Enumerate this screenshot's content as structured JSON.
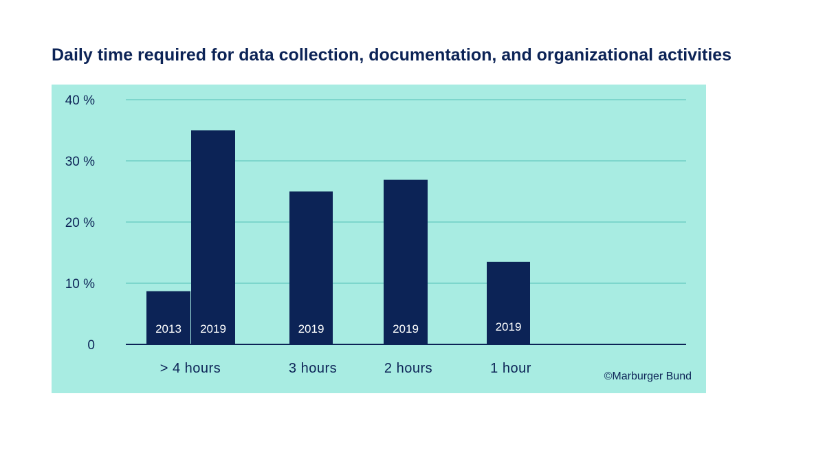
{
  "chart_data": {
    "type": "bar",
    "title": "Daily time required for data collection, documentation, and organizational activities",
    "xlabel": "",
    "ylabel": "",
    "ylim": [
      0,
      40
    ],
    "yticks": [
      {
        "value": 0,
        "label": "0"
      },
      {
        "value": 10,
        "label": "10 %"
      },
      {
        "value": 20,
        "label": "20 %"
      },
      {
        "value": 30,
        "label": "30 %"
      },
      {
        "value": 40,
        "label": "40 %"
      }
    ],
    "categories": [
      "> 4 hours",
      "3 hours",
      "2 hours",
      "1 hour"
    ],
    "bars": [
      {
        "category": "> 4 hours",
        "year": "2013",
        "value": 8.7
      },
      {
        "category": "> 4 hours",
        "year": "2019",
        "value": 35
      },
      {
        "category": "3 hours",
        "year": "2019",
        "value": 25
      },
      {
        "category": "2 hours",
        "year": "2019",
        "value": 26.9
      },
      {
        "category": "1 hour",
        "year": "2019",
        "value": 13.5
      }
    ],
    "grid": true,
    "source": "©Marburger Bund",
    "colors": {
      "bar": "#0c2356",
      "background": "#a8ece2",
      "grid": "#6fcfc4",
      "text": "#0c2356"
    }
  }
}
